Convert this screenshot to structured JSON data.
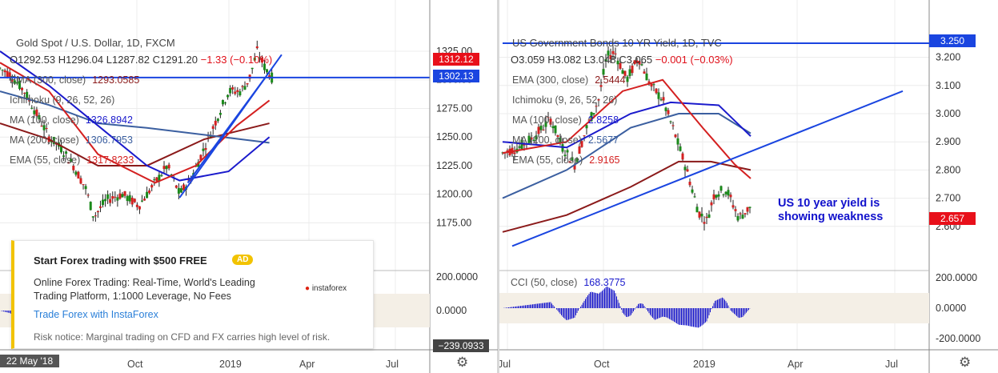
{
  "left_chart": {
    "title": "Gold Spot / U.S. Dollar, 1D, FXCM",
    "ohlc": {
      "o": "O1292.53",
      "h": "H1296.04",
      "l": "L1287.82",
      "c": "C1291.20",
      "chg": "−1.33 (−0.10%)"
    },
    "indicators": [
      {
        "label": "EMA (300, close)",
        "value": "1293.0585",
        "color": "#8b1a1a"
      },
      {
        "label": "Ichimoku (9, 26, 52, 26)",
        "value": "",
        "color": "#999999"
      },
      {
        "label": "MA (100, close)",
        "value": "1326.8942",
        "color": "#1a1acc"
      },
      {
        "label": "MA (200, close)",
        "value": "1306.7953",
        "color": "#3b5fa0"
      },
      {
        "label": "EMA (55, close)",
        "value": "1317.8233",
        "color": "#d42020"
      }
    ],
    "price_tags": [
      {
        "label": "1312.12",
        "color": "#e8101a"
      },
      {
        "label": "1302.13",
        "color": "#1a45e0"
      }
    ],
    "osc_tag": "−239.0933",
    "date_tag": "22 May '18",
    "annotation": ""
  },
  "right_chart": {
    "title": "US Government Bonds 10 YR Yield, 1D, TVC",
    "ohlc": {
      "o": "O3.059",
      "h": "H3.082",
      "l": "L3.048",
      "c": "C3.065",
      "chg": "−0.001 (−0.03%)"
    },
    "indicators": [
      {
        "label": "EMA (300, close)",
        "value": "2.5444",
        "color": "#8b1a1a"
      },
      {
        "label": "Ichimoku (9, 26, 52, 26)",
        "value": "",
        "color": "#999999"
      },
      {
        "label": "MA (100, close)",
        "value": "2.8258",
        "color": "#1a1acc"
      },
      {
        "label": "MA (200, close)",
        "value": "2.5677",
        "color": "#3b5fa0"
      },
      {
        "label": "EMA (55, close)",
        "value": "2.9165",
        "color": "#d42020"
      }
    ],
    "price_tags": [
      {
        "label": "3.250",
        "color": "#1a45e0"
      },
      {
        "label": "2.657",
        "color": "#e8101a"
      }
    ],
    "cci_label": "CCI (50, close)",
    "cci_value": "168.3775",
    "annotation": "US 10 year yield is showing weakness"
  },
  "ad": {
    "heading": "Start Forex trading with $500 FREE",
    "badge": "AD",
    "body": "Online Forex Trading: Real-Time, World's Leading Trading Platform, 1:1000 Leverage, No Fees",
    "link": "Trade Forex with InstaForex",
    "risk": "Risk notice: Marginal trading on CFD and FX carries high level of risk.",
    "logo": "instaforex"
  },
  "chart_data": [
    {
      "type": "candlestick",
      "title": "Gold Spot / U.S. Dollar, 1D, FXCM",
      "y_ticks": [
        1325.0,
        1300.0,
        1275.0,
        1250.0,
        1225.0,
        1200.0,
        1175.0
      ],
      "x_ticks": [
        "Oct",
        "2019",
        "Apr",
        "Jul"
      ],
      "ylim": [
        1162,
        1332
      ],
      "price_path": [
        [
          0,
          1310
        ],
        [
          12,
          1305
        ],
        [
          30,
          1290
        ],
        [
          45,
          1270
        ],
        [
          60,
          1250
        ],
        [
          75,
          1240
        ],
        [
          90,
          1225
        ],
        [
          105,
          1205
        ],
        [
          115,
          1180
        ],
        [
          130,
          1195
        ],
        [
          150,
          1200
        ],
        [
          170,
          1190
        ],
        [
          190,
          1210
        ],
        [
          205,
          1225
        ],
        [
          220,
          1200
        ],
        [
          235,
          1215
        ],
        [
          250,
          1240
        ],
        [
          265,
          1265
        ],
        [
          280,
          1290
        ],
        [
          295,
          1290
        ],
        [
          305,
          1300
        ],
        [
          315,
          1325
        ],
        [
          325,
          1310
        ],
        [
          335,
          1300
        ]
      ],
      "osc_ticks": [
        200.0,
        0.0
      ],
      "osc_current": -239.0933
    },
    {
      "type": "candlestick",
      "title": "US Government Bonds 10 YR Yield, 1D, TVC",
      "y_ticks": [
        3.2,
        3.1,
        3.0,
        2.9,
        2.8,
        2.7,
        2.6
      ],
      "x_ticks": [
        "Jul",
        "Oct",
        "2019",
        "Apr",
        "Jul"
      ],
      "ylim": [
        2.5,
        3.25
      ],
      "price_path": [
        [
          0,
          2.86
        ],
        [
          20,
          2.88
        ],
        [
          40,
          2.92
        ],
        [
          60,
          2.98
        ],
        [
          75,
          2.88
        ],
        [
          90,
          2.82
        ],
        [
          105,
          2.95
        ],
        [
          120,
          3.05
        ],
        [
          130,
          3.2
        ],
        [
          140,
          3.22
        ],
        [
          155,
          3.12
        ],
        [
          170,
          3.2
        ],
        [
          185,
          3.1
        ],
        [
          200,
          3.05
        ],
        [
          215,
          2.93
        ],
        [
          230,
          2.8
        ],
        [
          245,
          2.65
        ],
        [
          255,
          2.62
        ],
        [
          265,
          2.72
        ],
        [
          280,
          2.73
        ],
        [
          295,
          2.63
        ],
        [
          310,
          2.67
        ]
      ],
      "cci_ticks": [
        200.0,
        0.0,
        -200.0
      ],
      "cci_value": 168.3775
    }
  ]
}
